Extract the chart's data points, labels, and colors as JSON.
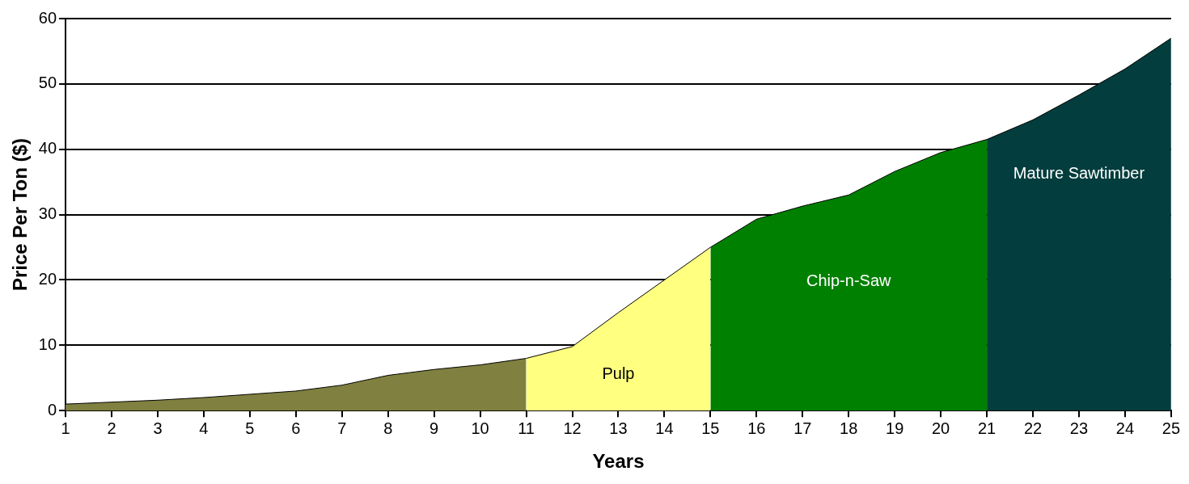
{
  "chart_data": {
    "type": "area",
    "xlabel": "Years",
    "ylabel": "Price Per Ton ($)",
    "xlim": [
      1,
      25
    ],
    "ylim": [
      0,
      60
    ],
    "xticks": [
      1,
      2,
      3,
      4,
      5,
      6,
      7,
      8,
      9,
      10,
      11,
      12,
      13,
      14,
      15,
      16,
      17,
      18,
      19,
      20,
      21,
      22,
      23,
      24,
      25
    ],
    "yticks": [
      0,
      10,
      20,
      30,
      40,
      50,
      60
    ],
    "grid": "y",
    "series": [
      {
        "color": "#808040",
        "x": [
          1,
          2,
          3,
          4,
          5,
          6,
          7,
          8,
          9,
          10,
          11
        ],
        "values": [
          1,
          1.3,
          1.6,
          2,
          2.5,
          3,
          3.9,
          5.4,
          6.3,
          7,
          8
        ]
      },
      {
        "name": "Pulp",
        "color": "#ffff80",
        "x": [
          11,
          12,
          13,
          14,
          15
        ],
        "values": [
          8,
          9.8,
          15,
          20,
          25
        ]
      },
      {
        "name": "Chip-n-Saw",
        "color": "#008000",
        "x": [
          15,
          16,
          17,
          18,
          19,
          20,
          21
        ],
        "values": [
          25,
          29.3,
          31.3,
          33,
          36.6,
          39.5,
          41.5
        ]
      },
      {
        "name": "Mature Sawtimber",
        "color": "#033d3d",
        "x": [
          21,
          22,
          23,
          24,
          25
        ],
        "values": [
          41.5,
          44.5,
          48.3,
          52.3,
          57
        ]
      }
    ]
  }
}
